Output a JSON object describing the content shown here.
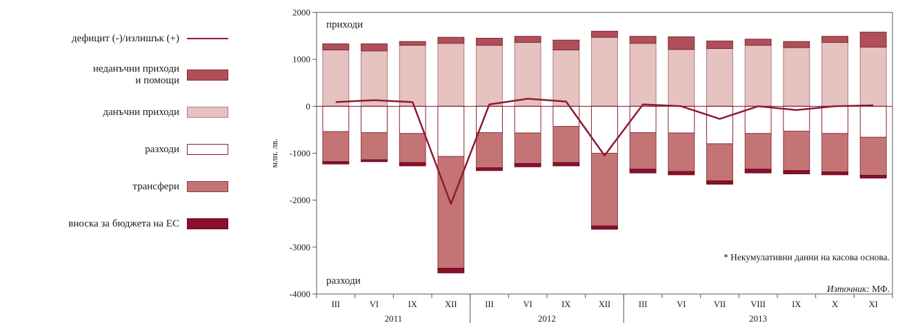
{
  "legend": {
    "items": [
      {
        "key": "balance",
        "label": "дефицит (-)/излишък (+)",
        "kind": "line",
        "color": "#8c1a32"
      },
      {
        "key": "nontax",
        "label": "неданъчни приходи\nи помощи",
        "kind": "box",
        "color": "#b04f5a",
        "border": "#7a2a35"
      },
      {
        "key": "tax",
        "label": "данъчни приходи",
        "kind": "box",
        "color": "#e6c2c0",
        "border": "#b07a7c"
      },
      {
        "key": "exp",
        "label": "разходи",
        "kind": "box",
        "color": "#ffffff",
        "border": "#8c1a32"
      },
      {
        "key": "transfers",
        "label": "трансфери",
        "kind": "box",
        "color": "#c57475",
        "border": "#8c3a45"
      },
      {
        "key": "eu",
        "label": "вноска за бюджета на ЕС",
        "kind": "box",
        "color": "#8c0f2b",
        "border": "#6a0a20"
      }
    ]
  },
  "footnote": "* Некумулативни данни на касова основа.",
  "source": {
    "prefix": "Източник:",
    "text": " МФ."
  },
  "chart_data": {
    "type": "bar",
    "ylabel": "млн. лв.",
    "ylim": [
      -4000,
      2000
    ],
    "yticks": [
      -4000,
      -3000,
      -2000,
      -1000,
      0,
      1000,
      2000
    ],
    "annotations": {
      "top": "приходи",
      "bottom": "разходи"
    },
    "categories": [
      "III",
      "VI",
      "IX",
      "XII",
      "III",
      "VI",
      "IX",
      "XII",
      "III",
      "VI",
      "VII",
      "VIII",
      "IX",
      "X",
      "XI"
    ],
    "year_groups": [
      {
        "label": "2011",
        "start": 0,
        "count": 4
      },
      {
        "label": "2012",
        "start": 4,
        "count": 4
      },
      {
        "label": "2013",
        "start": 8,
        "count": 7
      }
    ],
    "series": [
      {
        "name": "данъчни приходи",
        "key": "tax",
        "values": [
          1200,
          1180,
          1300,
          1340,
          1300,
          1360,
          1200,
          1470,
          1340,
          1210,
          1230,
          1300,
          1250,
          1360,
          1260
        ]
      },
      {
        "name": "неданъчни приходи и помощи",
        "key": "nontax",
        "values": [
          130,
          150,
          80,
          130,
          150,
          130,
          210,
          130,
          150,
          270,
          160,
          130,
          130,
          130,
          320
        ]
      },
      {
        "name": "разходи",
        "key": "exp",
        "values": [
          -540,
          -560,
          -580,
          -1070,
          -560,
          -570,
          -430,
          -1000,
          -560,
          -570,
          -800,
          -580,
          -530,
          -580,
          -660
        ]
      },
      {
        "name": "трансфери",
        "key": "transfers",
        "values": [
          -640,
          -580,
          -620,
          -2380,
          -750,
          -650,
          -770,
          -1550,
          -780,
          -820,
          -790,
          -760,
          -840,
          -820,
          -810
        ]
      },
      {
        "name": "вноска за бюджета на ЕС",
        "key": "eu",
        "values": [
          -50,
          -40,
          -70,
          -100,
          -60,
          -70,
          -70,
          -70,
          -80,
          -70,
          -70,
          -80,
          -70,
          -60,
          -60
        ]
      },
      {
        "name": "дефицит (-)/излишък (+)",
        "key": "balance",
        "values": [
          90,
          130,
          90,
          -2080,
          40,
          160,
          100,
          -1050,
          40,
          0,
          -270,
          0,
          -80,
          0,
          20
        ]
      }
    ]
  }
}
